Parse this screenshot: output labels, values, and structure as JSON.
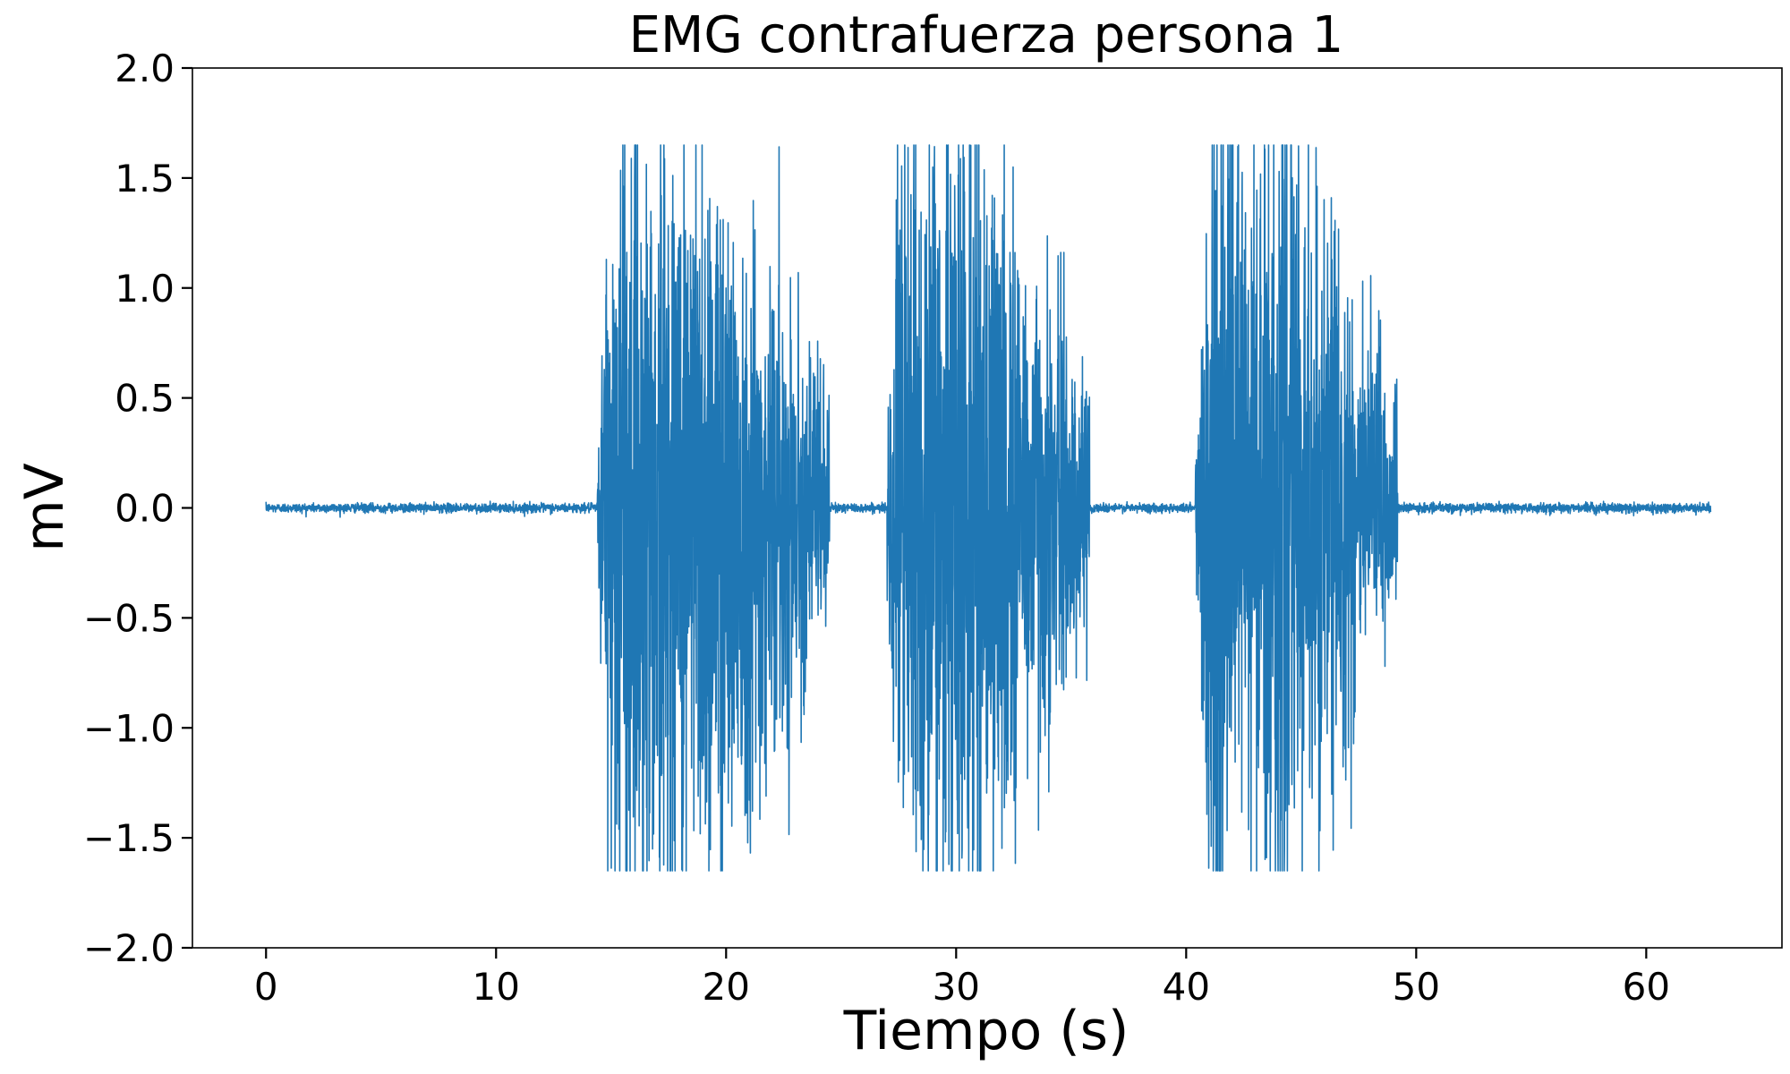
{
  "chart_data": {
    "type": "line",
    "title": "EMG contrafuerza persona 1",
    "xlabel": "Tiempo (s)",
    "ylabel": "mV",
    "xlim": [
      -3.2,
      65.9
    ],
    "ylim": [
      -2.0,
      2.0
    ],
    "xticks": [
      0,
      10,
      20,
      30,
      40,
      50,
      60
    ],
    "xtick_labels": [
      "0",
      "10",
      "20",
      "30",
      "40",
      "50",
      "60"
    ],
    "yticks": [
      2.0,
      1.5,
      1.0,
      0.5,
      0.0,
      -0.5,
      -1.0,
      -1.5,
      -2.0
    ],
    "ytick_labels": [
      "2.0",
      "1.5",
      "1.0",
      "0.5",
      "0.0",
      "−0.5",
      "−1.0",
      "−1.5",
      "−2.0"
    ],
    "grid": false,
    "series": [
      {
        "color": "#1f77b4",
        "x_range": [
          0,
          62.8
        ],
        "baseline_mV": 0.0,
        "baseline_noise_mV": 0.02,
        "clip_mV": [
          -1.65,
          1.65
        ],
        "bursts": [
          {
            "start_s": 14.4,
            "end_s": 24.5,
            "peak_mV": 1.65
          },
          {
            "start_s": 27.0,
            "end_s": 35.8,
            "peak_mV": 1.65
          },
          {
            "start_s": 40.4,
            "end_s": 49.2,
            "peak_mV": 1.65
          }
        ]
      }
    ]
  }
}
